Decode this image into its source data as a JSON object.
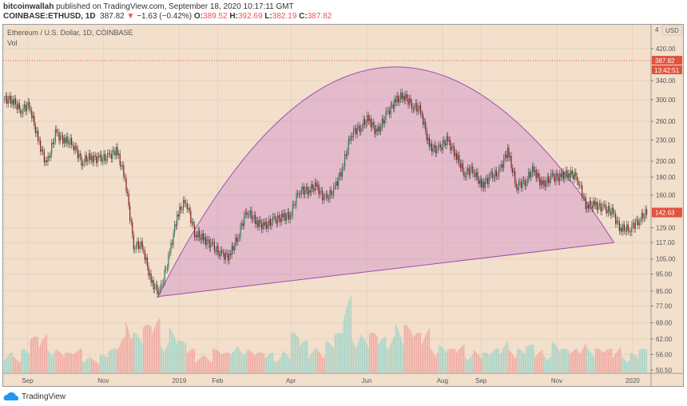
{
  "header": {
    "author": "bitcoinwallah",
    "published": "published on TradingView.com, September 18, 2020 10:17:11 GMT",
    "symbol": "COINBASE:ETHUSD, 1D",
    "last": "387.82",
    "change": "−1.63 (−0.42%)",
    "o_label": "O:",
    "o": "389.52",
    "h_label": "H:",
    "h": "392.69",
    "l_label": "L:",
    "l": "382.19",
    "c_label": "C:",
    "c": "387.82"
  },
  "legend": {
    "title": "Ethereum / U.S. Dollar, 1D, COINBASE",
    "vol": "Vol"
  },
  "axis": {
    "currency": "USD",
    "top_cut": "4",
    "last_price_label": "387.82",
    "countdown": "13:42:51",
    "current_label": "142.63"
  },
  "footer": {
    "brand": "TradingView"
  },
  "colors": {
    "up": "#26a69a",
    "down": "#ef5350",
    "bg": "#f2dfcc",
    "cup": "#9c4fb0"
  },
  "chart_data": {
    "type": "candlestick",
    "scale": "log",
    "grid": true,
    "y_ticks": [
      420,
      340,
      300,
      260,
      230,
      200,
      180,
      160,
      129,
      117,
      105,
      95,
      85,
      77,
      69,
      62,
      56,
      50.5
    ],
    "x_ticks": [
      {
        "label": "Sep",
        "date": "2018-09-01"
      },
      {
        "label": "Nov",
        "date": "2018-11-01"
      },
      {
        "label": "2019",
        "date": "2019-01-01"
      },
      {
        "label": "Feb",
        "date": "2019-02-01"
      },
      {
        "label": "Apr",
        "date": "2019-04-01"
      },
      {
        "label": "Jun",
        "date": "2019-06-01"
      },
      {
        "label": "Aug",
        "date": "2019-08-01"
      },
      {
        "label": "Sep",
        "date": "2019-09-01"
      },
      {
        "label": "Nov",
        "date": "2019-11-01"
      },
      {
        "label": "2020",
        "date": "2020-01-01"
      }
    ],
    "start_date": "2018-08-13",
    "interval_days": 7,
    "closes": [
      300,
      280,
      290,
      230,
      195,
      240,
      230,
      225,
      200,
      205,
      203,
      205,
      215,
      180,
      115,
      115,
      90,
      84,
      105,
      140,
      155,
      125,
      120,
      115,
      108,
      107,
      122,
      145,
      135,
      130,
      135,
      138,
      140,
      165,
      165,
      170,
      155,
      165,
      190,
      240,
      250,
      265,
      240,
      270,
      295,
      310,
      290,
      280,
      220,
      215,
      230,
      210,
      185,
      190,
      170,
      180,
      185,
      215,
      170,
      175,
      190,
      170,
      180,
      180,
      185,
      180,
      150,
      150,
      147,
      143,
      128,
      128,
      135,
      142.63
    ],
    "volumes": [
      0.3,
      0.25,
      0.3,
      0.45,
      0.5,
      0.4,
      0.3,
      0.25,
      0.3,
      0.25,
      0.2,
      0.22,
      0.3,
      0.5,
      0.8,
      0.5,
      0.6,
      0.7,
      0.5,
      0.6,
      0.4,
      0.3,
      0.25,
      0.25,
      0.3,
      0.25,
      0.35,
      0.4,
      0.3,
      0.25,
      0.25,
      0.25,
      0.3,
      0.5,
      0.4,
      0.35,
      0.35,
      0.4,
      0.5,
      1.0,
      0.6,
      0.5,
      0.5,
      0.45,
      0.55,
      0.7,
      0.6,
      0.5,
      0.6,
      0.4,
      0.35,
      0.3,
      0.35,
      0.3,
      0.3,
      0.25,
      0.3,
      0.45,
      0.35,
      0.3,
      0.35,
      0.3,
      0.3,
      0.4,
      0.3,
      0.3,
      0.45,
      0.35,
      0.3,
      0.3,
      0.35,
      0.25,
      0.25,
      0.3
    ],
    "last_price": 387.82,
    "current_price": 142.63,
    "cup_pattern": {
      "start": {
        "date": "2018-12-15",
        "price": 82
      },
      "apex": {
        "date": "2019-06-12",
        "price": 370
      },
      "end": {
        "date": "2019-12-17",
        "price": 117
      }
    }
  }
}
